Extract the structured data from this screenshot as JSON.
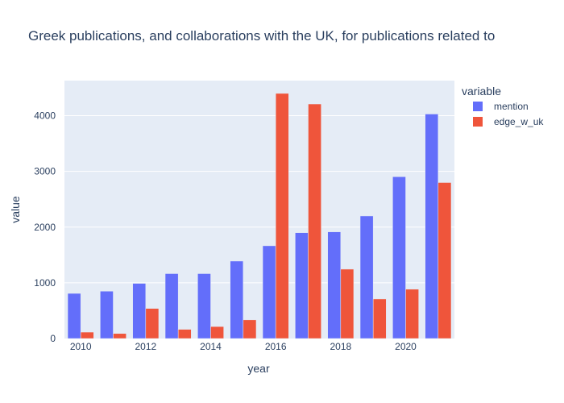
{
  "chart_data": {
    "type": "bar",
    "title": "Greek publications, and collaborations with the UK, for publications related to",
    "xlabel": "year",
    "ylabel": "value",
    "legend_title": "variable",
    "legend_position": "right",
    "categories": [
      2010,
      2011,
      2012,
      2013,
      2014,
      2015,
      2016,
      2017,
      2018,
      2019,
      2020,
      2021
    ],
    "x_ticks": [
      "2010",
      "2012",
      "2014",
      "2016",
      "2018",
      "2020"
    ],
    "x_tick_values": [
      2010,
      2012,
      2014,
      2016,
      2018,
      2020
    ],
    "y_ticks": [
      "0",
      "1000",
      "2000",
      "3000",
      "4000"
    ],
    "y_tick_values": [
      0,
      1000,
      2000,
      3000,
      4000
    ],
    "ylim": [
      0,
      4630
    ],
    "grid": true,
    "series": [
      {
        "name": "mention",
        "color": "#636efa",
        "values": [
          810,
          850,
          990,
          1165,
          1165,
          1390,
          1665,
          1900,
          1915,
          2200,
          2905,
          4030
        ]
      },
      {
        "name": "edge_w_uk",
        "color": "#ef553b",
        "values": [
          115,
          90,
          540,
          165,
          215,
          335,
          4400,
          4210,
          1245,
          710,
          885,
          2800
        ]
      }
    ],
    "plot_background": "#e5ecf6",
    "grid_color": "#ffffff"
  }
}
